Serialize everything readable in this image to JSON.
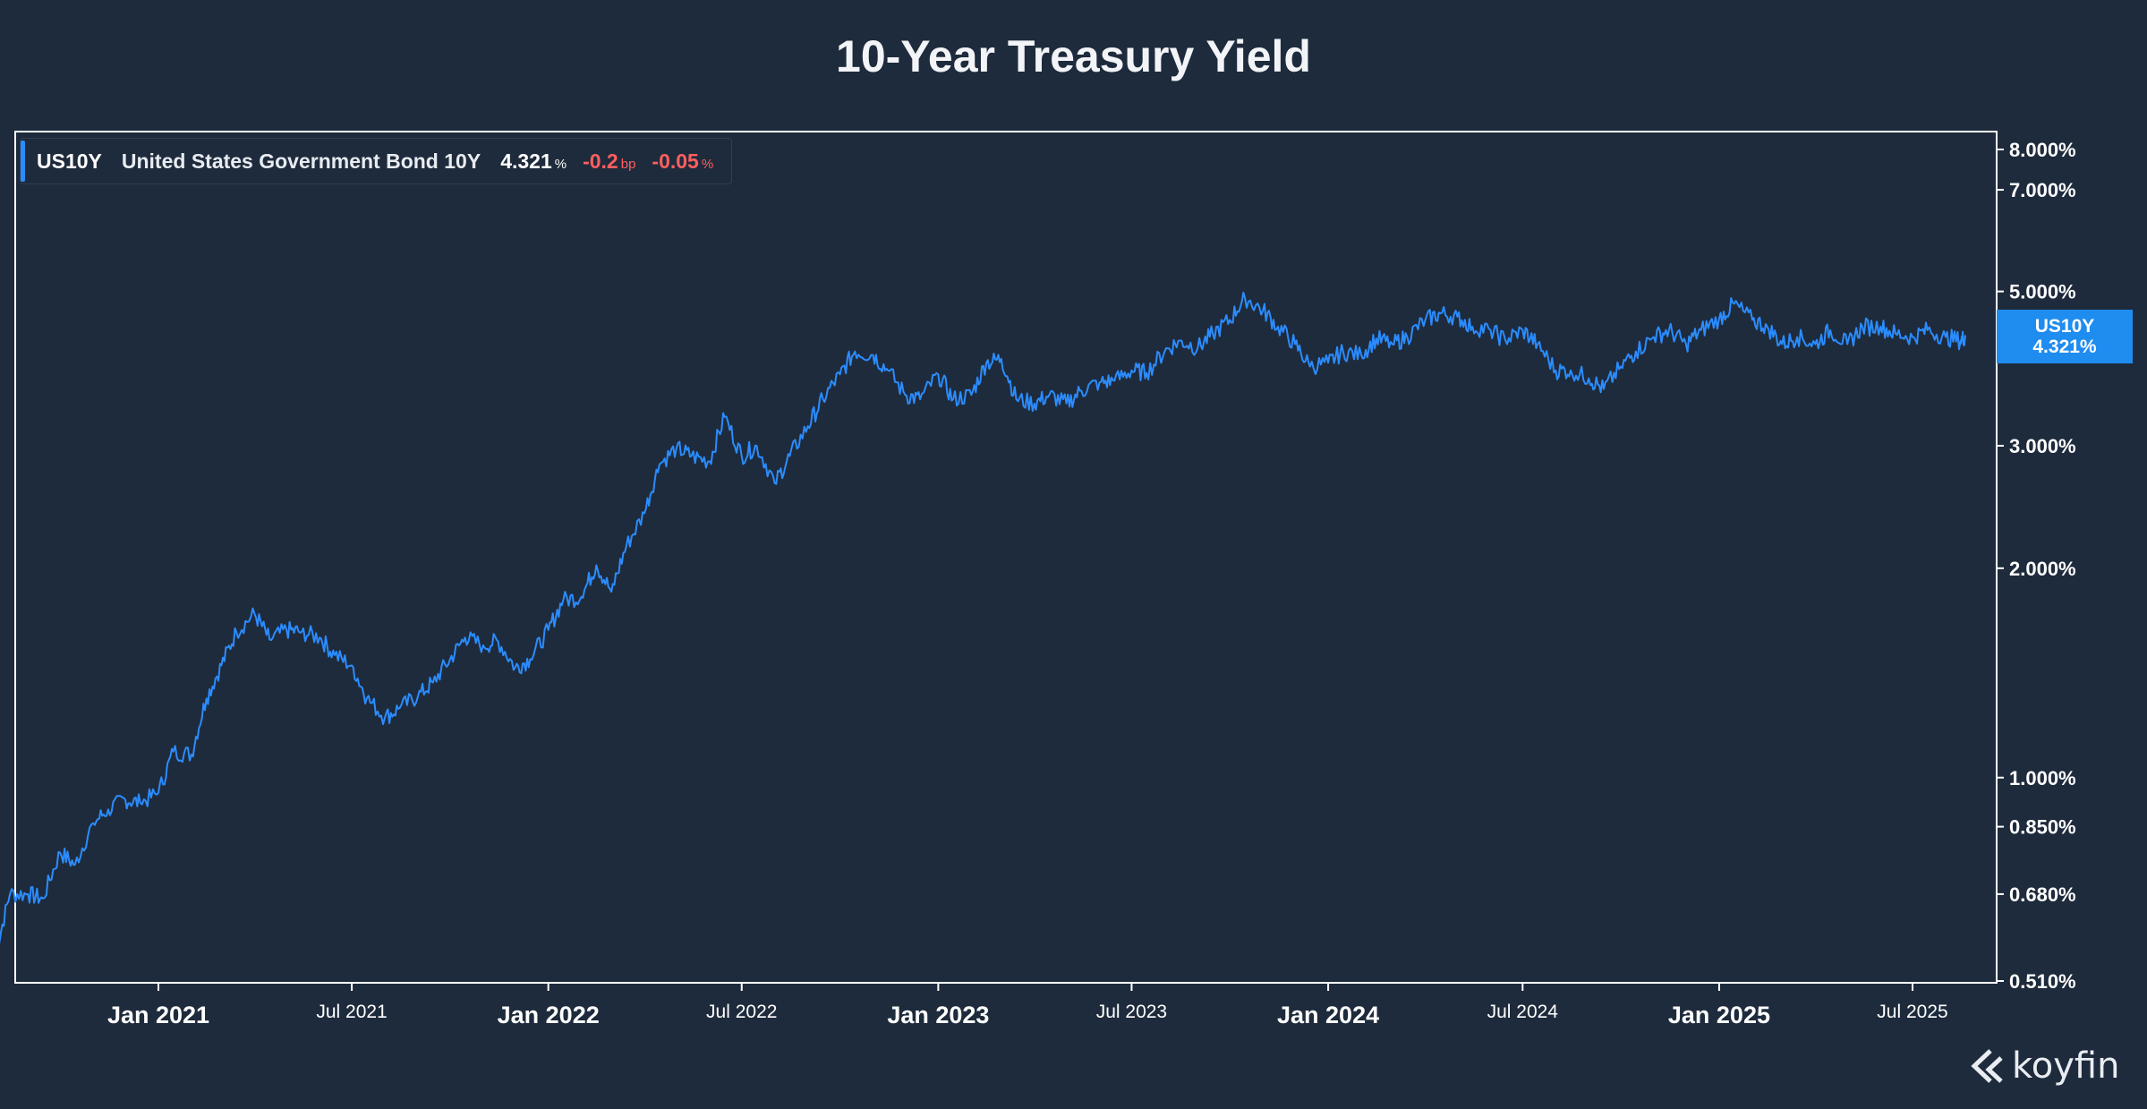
{
  "title": "10-Year Treasury Yield",
  "legend": {
    "symbol": "US10Y",
    "name": "United States Government Bond 10Y",
    "value": "4.321",
    "value_unit": "%",
    "change_bp": "-0.2",
    "change_bp_unit": "bp",
    "change_pct": "-0.05",
    "change_pct_unit": "%"
  },
  "last_badge": {
    "symbol": "US10Y",
    "value": "4.321%"
  },
  "brand": {
    "name": "koyfin"
  },
  "colors": {
    "background": "#1e2b3c",
    "line": "#2b8cff",
    "badge": "#1f8cf0",
    "negative": "#ff5f5f"
  },
  "chart_data": {
    "type": "line",
    "title": "10-Year Treasury Yield",
    "y_scale": "log",
    "ylim": [
      0.51,
      8.0
    ],
    "y_ticks": [
      0.51,
      0.68,
      0.85,
      1.0,
      2.0,
      3.0,
      5.0,
      7.0,
      8.0
    ],
    "y_tick_labels": [
      "0.510%",
      "0.680%",
      "0.850%",
      "1.000%",
      "2.000%",
      "3.000%",
      "5.000%",
      "7.000%",
      "8.000%"
    ],
    "xlim": [
      "2020-08-01",
      "2025-08-20"
    ],
    "x_ticks": [
      "2021-01-01",
      "2021-07-01",
      "2022-01-01",
      "2022-07-01",
      "2023-01-01",
      "2023-07-01",
      "2024-01-01",
      "2024-07-01",
      "2025-01-01",
      "2025-07-01"
    ],
    "x_tick_labels": [
      "Jan 2021",
      "Jul 2021",
      "Jan 2022",
      "Jul 2022",
      "Jan 2023",
      "Jul 2023",
      "Jan 2024",
      "Jul 2024",
      "Jan 2025",
      "Jul 2025"
    ],
    "x_tick_major": [
      true,
      false,
      true,
      false,
      true,
      false,
      true,
      false,
      true,
      false
    ],
    "grid": false,
    "legend": "top-left",
    "series": [
      {
        "name": "US10Y",
        "x": [
          "2020-08-01",
          "2020-08-15",
          "2020-09-01",
          "2020-09-15",
          "2020-10-01",
          "2020-10-15",
          "2020-11-01",
          "2020-11-15",
          "2020-12-01",
          "2020-12-15",
          "2021-01-01",
          "2021-01-15",
          "2021-02-01",
          "2021-02-15",
          "2021-03-01",
          "2021-03-15",
          "2021-04-01",
          "2021-04-15",
          "2021-05-01",
          "2021-05-15",
          "2021-06-01",
          "2021-06-15",
          "2021-07-01",
          "2021-07-15",
          "2021-08-01",
          "2021-08-15",
          "2021-09-01",
          "2021-09-15",
          "2021-10-01",
          "2021-10-15",
          "2021-11-01",
          "2021-11-15",
          "2021-12-01",
          "2021-12-15",
          "2022-01-01",
          "2022-01-15",
          "2022-02-01",
          "2022-02-15",
          "2022-03-01",
          "2022-03-15",
          "2022-04-01",
          "2022-04-15",
          "2022-05-01",
          "2022-05-15",
          "2022-06-01",
          "2022-06-15",
          "2022-07-01",
          "2022-07-15",
          "2022-08-01",
          "2022-08-15",
          "2022-09-01",
          "2022-09-15",
          "2022-10-01",
          "2022-10-15",
          "2022-11-01",
          "2022-11-15",
          "2022-12-01",
          "2022-12-15",
          "2023-01-01",
          "2023-01-15",
          "2023-02-01",
          "2023-02-15",
          "2023-03-01",
          "2023-03-15",
          "2023-04-01",
          "2023-04-15",
          "2023-05-01",
          "2023-05-15",
          "2023-06-01",
          "2023-06-15",
          "2023-07-01",
          "2023-07-15",
          "2023-08-01",
          "2023-08-15",
          "2023-09-01",
          "2023-09-15",
          "2023-10-01",
          "2023-10-15",
          "2023-11-01",
          "2023-11-15",
          "2023-12-01",
          "2023-12-15",
          "2024-01-01",
          "2024-01-15",
          "2024-02-01",
          "2024-02-15",
          "2024-03-01",
          "2024-03-15",
          "2024-04-01",
          "2024-04-15",
          "2024-05-01",
          "2024-05-15",
          "2024-06-01",
          "2024-06-15",
          "2024-07-01",
          "2024-07-15",
          "2024-08-01",
          "2024-08-15",
          "2024-09-01",
          "2024-09-15",
          "2024-10-01",
          "2024-10-15",
          "2024-11-01",
          "2024-11-15",
          "2024-12-01",
          "2024-12-15",
          "2025-01-01",
          "2025-01-15",
          "2025-02-01",
          "2025-02-15",
          "2025-03-01",
          "2025-03-15",
          "2025-04-01",
          "2025-04-15",
          "2025-05-01",
          "2025-05-15",
          "2025-06-01",
          "2025-06-15",
          "2025-07-01",
          "2025-07-15",
          "2025-08-01",
          "2025-08-15",
          "2025-08-20"
        ],
        "y": [
          0.55,
          0.68,
          0.68,
          0.67,
          0.78,
          0.75,
          0.86,
          0.9,
          0.93,
          0.92,
          0.95,
          1.09,
          1.08,
          1.3,
          1.45,
          1.62,
          1.72,
          1.58,
          1.63,
          1.62,
          1.59,
          1.5,
          1.45,
          1.3,
          1.22,
          1.26,
          1.31,
          1.37,
          1.48,
          1.59,
          1.55,
          1.57,
          1.44,
          1.48,
          1.63,
          1.8,
          1.82,
          2.02,
          1.85,
          2.15,
          2.4,
          2.82,
          2.98,
          2.9,
          2.85,
          3.3,
          2.9,
          3.0,
          2.65,
          2.9,
          3.2,
          3.5,
          3.8,
          4.1,
          4.05,
          3.85,
          3.55,
          3.5,
          3.8,
          3.5,
          3.55,
          3.95,
          4.0,
          3.5,
          3.45,
          3.55,
          3.45,
          3.6,
          3.7,
          3.72,
          3.85,
          3.82,
          4.1,
          4.25,
          4.15,
          4.35,
          4.55,
          4.9,
          4.7,
          4.45,
          4.2,
          3.9,
          3.95,
          4.1,
          4.05,
          4.28,
          4.2,
          4.3,
          4.55,
          4.65,
          4.6,
          4.45,
          4.4,
          4.25,
          4.4,
          4.2,
          3.85,
          3.85,
          3.75,
          3.62,
          3.9,
          4.1,
          4.3,
          4.4,
          4.2,
          4.4,
          4.57,
          4.8,
          4.55,
          4.45,
          4.2,
          4.3,
          4.2,
          4.4,
          4.2,
          4.45,
          4.45,
          4.35,
          4.3,
          4.4,
          4.3,
          4.25,
          4.321
        ]
      }
    ]
  }
}
